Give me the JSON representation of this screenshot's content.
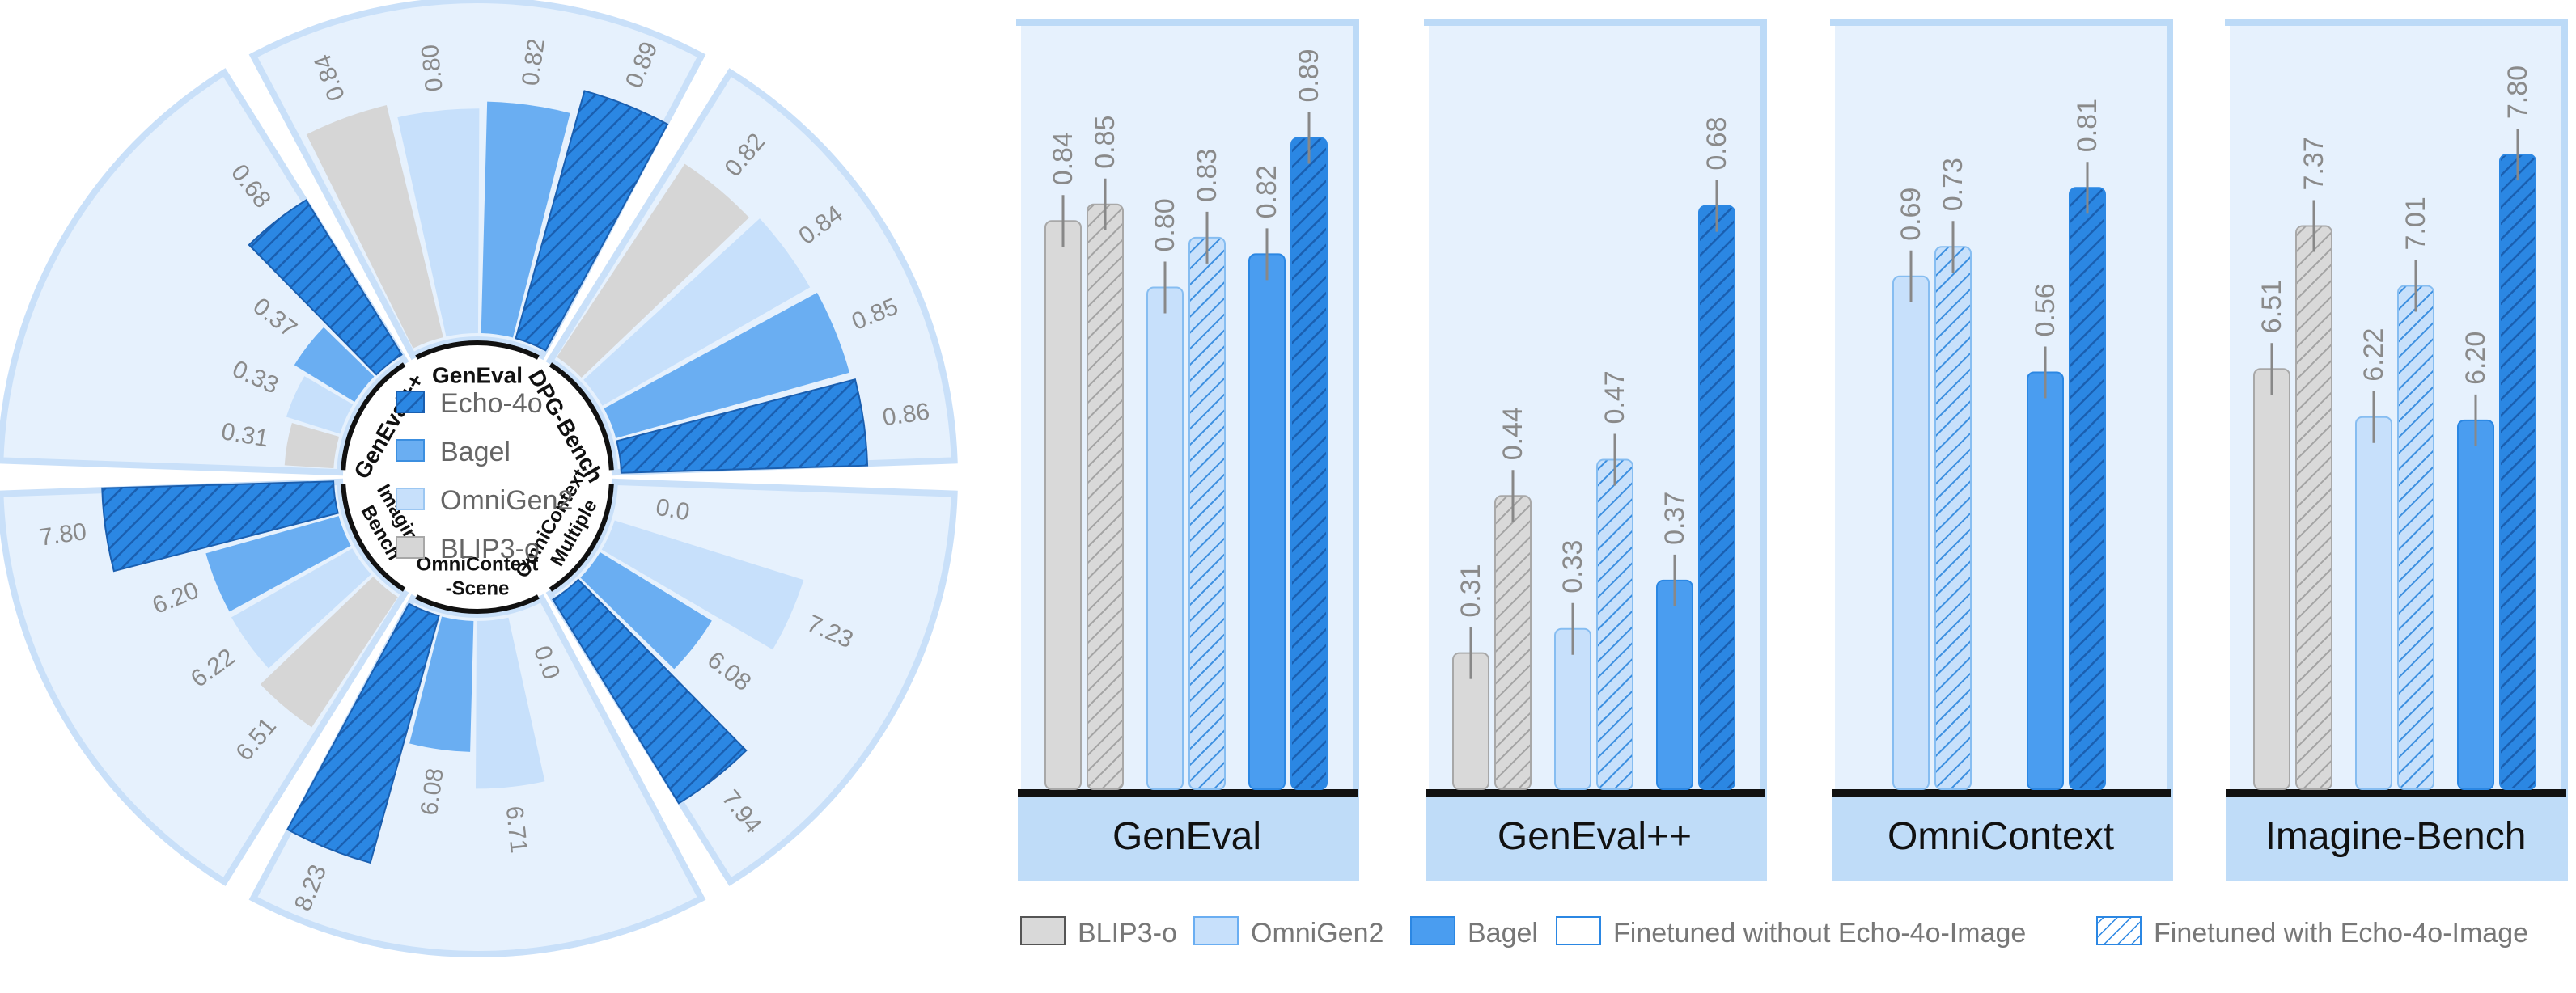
{
  "radial_panel": {
    "legend": [
      {
        "label": "Echo-4o",
        "kind": "echo"
      },
      {
        "label": "Bagel",
        "kind": "bagel"
      },
      {
        "label": "OmniGen2",
        "kind": "omnigen"
      },
      {
        "label": "BLIP3-o",
        "kind": "blip"
      }
    ]
  },
  "bar_panel": {
    "legend": [
      {
        "label": "BLIP3-o",
        "kind": "blip"
      },
      {
        "label": "OmniGen2",
        "kind": "omnigen"
      },
      {
        "label": "Bagel",
        "kind": "bagel"
      },
      {
        "label": "Finetuned without Echo-4o-Image",
        "kind": "without"
      },
      {
        "label": "Finetuned with Echo-4o-Image",
        "kind": "with"
      }
    ]
  },
  "colors": {
    "echo": "#2b87e3",
    "bagel": "#6aaef2",
    "omnigen": "#c7e0fb",
    "blip": "#d6d6d6",
    "wedge_bg": "#e6f1fd",
    "panel_bg": "#e6f1fd",
    "panel_header": "#bfdcf8",
    "label_gray": "#8a8a8a"
  },
  "chart_data": [
    {
      "type": "bar",
      "subtype": "radial",
      "groups": [
        {
          "name": "GenEval",
          "tag_lines": [
            "GenEval"
          ],
          "series": [
            "BLIP3-o",
            "OmniGen2",
            "Bagel",
            "Echo-4o"
          ],
          "values": [
            0.84,
            0.8,
            0.82,
            0.89
          ],
          "labels": [
            "0.84",
            "0.80",
            "0.82",
            "0.89"
          ]
        },
        {
          "name": "DPG-Bench",
          "tag_lines": [
            "DPG-Bench"
          ],
          "series": [
            "BLIP3-o",
            "OmniGen2",
            "Bagel",
            "Echo-4o"
          ],
          "values": [
            0.82,
            0.84,
            0.85,
            0.86
          ],
          "labels": [
            "0.82",
            "0.84",
            "0.85",
            "0.86"
          ]
        },
        {
          "name": "OmniContext-Multiple",
          "tag_lines": [
            "OmniContext-",
            "Multiple"
          ],
          "series": [
            "BLIP3-o",
            "OmniGen2",
            "Bagel",
            "Echo-4o"
          ],
          "values": [
            0.0,
            7.23,
            6.08,
            7.94
          ],
          "labels": [
            "0.0",
            "7.23",
            "6.08",
            "7.94"
          ]
        },
        {
          "name": "OmniContext-Scene",
          "tag_lines": [
            "OmniContext",
            "-Scene"
          ],
          "series": [
            "BLIP3-o",
            "OmniGen2",
            "Bagel",
            "Echo-4o"
          ],
          "values": [
            0.0,
            6.71,
            6.08,
            8.23
          ],
          "labels": [
            "0.0",
            "6.71",
            "6.08",
            "8.23"
          ]
        },
        {
          "name": "Imagine-Bench",
          "tag_lines": [
            "Imagine-",
            "Bench"
          ],
          "series": [
            "BLIP3-o",
            "OmniGen2",
            "Bagel",
            "Echo-4o"
          ],
          "values": [
            6.51,
            6.22,
            6.2,
            7.8
          ],
          "labels": [
            "6.51",
            "6.22",
            "6.20",
            "7.80"
          ]
        },
        {
          "name": "GenEval++",
          "tag_lines": [
            "GenEval++"
          ],
          "series": [
            "BLIP3-o",
            "OmniGen2",
            "Bagel",
            "Echo-4o"
          ],
          "values": [
            0.31,
            0.33,
            0.37,
            0.68
          ],
          "labels": [
            "0.31",
            "0.33",
            "0.37",
            "0.68"
          ]
        }
      ]
    },
    {
      "type": "bar",
      "panels": [
        {
          "title": "GenEval",
          "ylim": [
            0.5,
            0.9
          ],
          "bars": [
            {
              "model": "BLIP3-o",
              "finetuned": "without",
              "value": 0.84,
              "label": "0.84"
            },
            {
              "model": "BLIP3-o",
              "finetuned": "with",
              "value": 0.85,
              "label": "0.85"
            },
            {
              "model": "OmniGen2",
              "finetuned": "without",
              "value": 0.8,
              "label": "0.80"
            },
            {
              "model": "OmniGen2",
              "finetuned": "with",
              "value": 0.83,
              "label": "0.83"
            },
            {
              "model": "Bagel",
              "finetuned": "without",
              "value": 0.82,
              "label": "0.82"
            },
            {
              "model": "Bagel",
              "finetuned": "with",
              "value": 0.89,
              "label": "0.89"
            }
          ]
        },
        {
          "title": "GenEval++",
          "ylim": [
            0.2,
            0.75
          ],
          "bars": [
            {
              "model": "BLIP3-o",
              "finetuned": "without",
              "value": 0.31,
              "label": "0.31"
            },
            {
              "model": "BLIP3-o",
              "finetuned": "with",
              "value": 0.44,
              "label": "0.44"
            },
            {
              "model": "OmniGen2",
              "finetuned": "without",
              "value": 0.33,
              "label": "0.33"
            },
            {
              "model": "OmniGen2",
              "finetuned": "with",
              "value": 0.47,
              "label": "0.47"
            },
            {
              "model": "Bagel",
              "finetuned": "without",
              "value": 0.37,
              "label": "0.37"
            },
            {
              "model": "Bagel",
              "finetuned": "with",
              "value": 0.68,
              "label": "0.68"
            }
          ]
        },
        {
          "title": "OmniContext",
          "ylim": [
            0.0,
            0.9
          ],
          "bars": [
            {
              "model": "OmniGen2",
              "finetuned": "without",
              "value": 0.69,
              "label": "0.69"
            },
            {
              "model": "OmniGen2",
              "finetuned": "with",
              "value": 0.73,
              "label": "0.73"
            },
            {
              "model": "Bagel",
              "finetuned": "without",
              "value": 0.56,
              "label": "0.56"
            },
            {
              "model": "Bagel",
              "finetuned": "with",
              "value": 0.81,
              "label": "0.81"
            }
          ]
        },
        {
          "title": "Imagine-Bench",
          "ylim": [
            4.0,
            8.0
          ],
          "bars": [
            {
              "model": "BLIP3-o",
              "finetuned": "without",
              "value": 6.51,
              "label": "6.51"
            },
            {
              "model": "BLIP3-o",
              "finetuned": "with",
              "value": 7.37,
              "label": "7.37"
            },
            {
              "model": "OmniGen2",
              "finetuned": "without",
              "value": 6.22,
              "label": "6.22"
            },
            {
              "model": "OmniGen2",
              "finetuned": "with",
              "value": 7.01,
              "label": "7.01"
            },
            {
              "model": "Bagel",
              "finetuned": "without",
              "value": 6.2,
              "label": "6.20"
            },
            {
              "model": "Bagel",
              "finetuned": "with",
              "value": 7.8,
              "label": "7.80"
            }
          ]
        }
      ]
    }
  ]
}
